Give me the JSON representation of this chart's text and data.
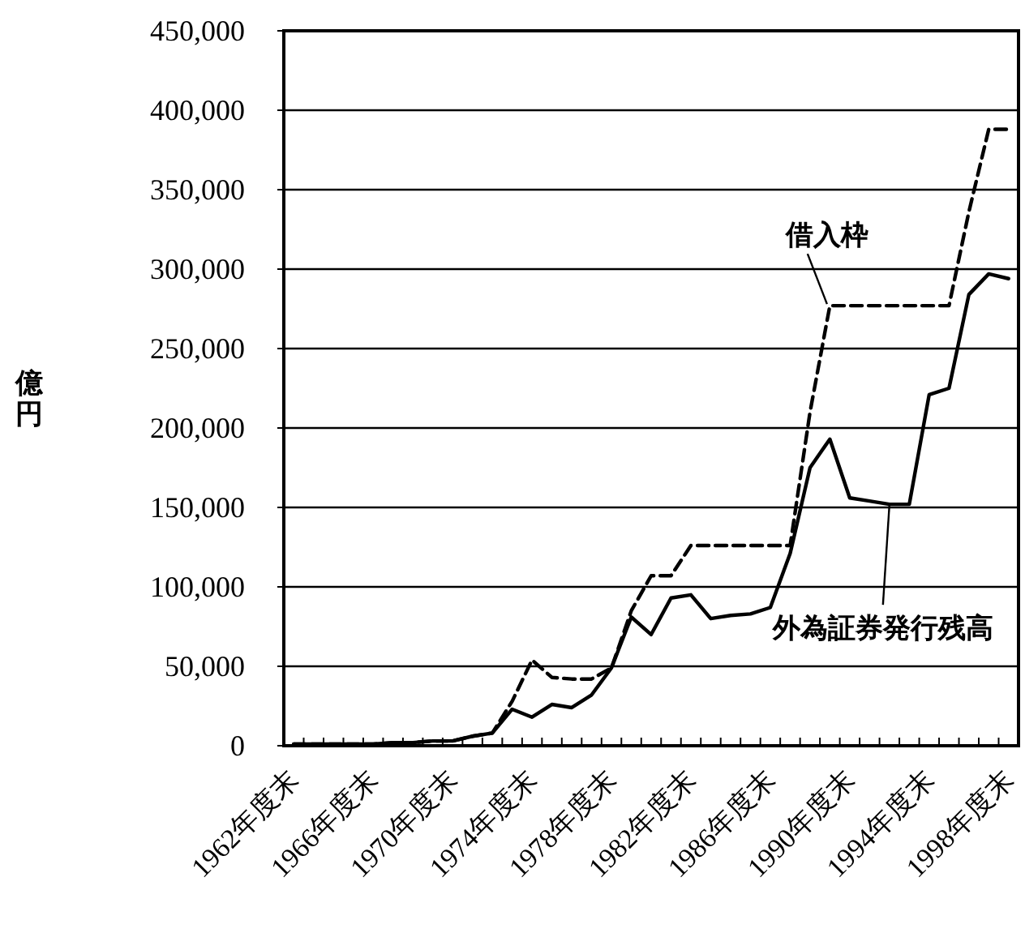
{
  "chart_data": {
    "type": "line",
    "ylabel": "億円",
    "categories": [
      "1962年度末",
      null,
      null,
      null,
      "1966年度末",
      null,
      null,
      null,
      "1970年度末",
      null,
      null,
      null,
      "1974年度末",
      null,
      null,
      null,
      "1978年度末",
      null,
      null,
      null,
      "1982年度末",
      null,
      null,
      null,
      "1986年度末",
      null,
      null,
      null,
      "1990年度末",
      null,
      null,
      null,
      "1994年度末",
      null,
      null,
      null,
      "1998年度末"
    ],
    "series": [
      {
        "name": "借入枠",
        "color": "#000000",
        "line_style": "dashed",
        "values": [
          1000,
          1000,
          1000,
          1000,
          1000,
          2000,
          2000,
          3000,
          3000,
          6000,
          8000,
          28000,
          54000,
          43000,
          42000,
          42000,
          49000,
          85000,
          107000,
          107000,
          126000,
          126000,
          126000,
          126000,
          126000,
          126000,
          210000,
          277000,
          277000,
          277000,
          277000,
          277000,
          277000,
          277000,
          336000,
          388000,
          388000
        ]
      },
      {
        "name": "外為証券発行残高",
        "color": "#000000",
        "line_style": "solid",
        "values": [
          1000,
          1000,
          1000,
          1000,
          1000,
          2000,
          2000,
          3000,
          3000,
          6000,
          8000,
          23000,
          18000,
          26000,
          24000,
          32000,
          49000,
          81000,
          70000,
          93000,
          95000,
          80000,
          82000,
          83000,
          87000,
          121000,
          175000,
          193000,
          156000,
          154000,
          152000,
          152000,
          221000,
          225000,
          284000,
          297000,
          294000
        ]
      }
    ],
    "ylim": [
      0,
      450000
    ],
    "yticks": [
      {
        "value": 0,
        "label": "0"
      },
      {
        "value": 50000,
        "label": "50,000"
      },
      {
        "value": 100000,
        "label": "100,000"
      },
      {
        "value": 150000,
        "label": "150,000"
      },
      {
        "value": 200000,
        "label": "200,000"
      },
      {
        "value": 250000,
        "label": "250,000"
      },
      {
        "value": 300000,
        "label": "300,000"
      },
      {
        "value": 350000,
        "label": "350,000"
      },
      {
        "value": 400000,
        "label": "400,000"
      },
      {
        "value": 450000,
        "label": "450,000"
      }
    ],
    "grid": "y",
    "legend": false,
    "marker": "none"
  }
}
